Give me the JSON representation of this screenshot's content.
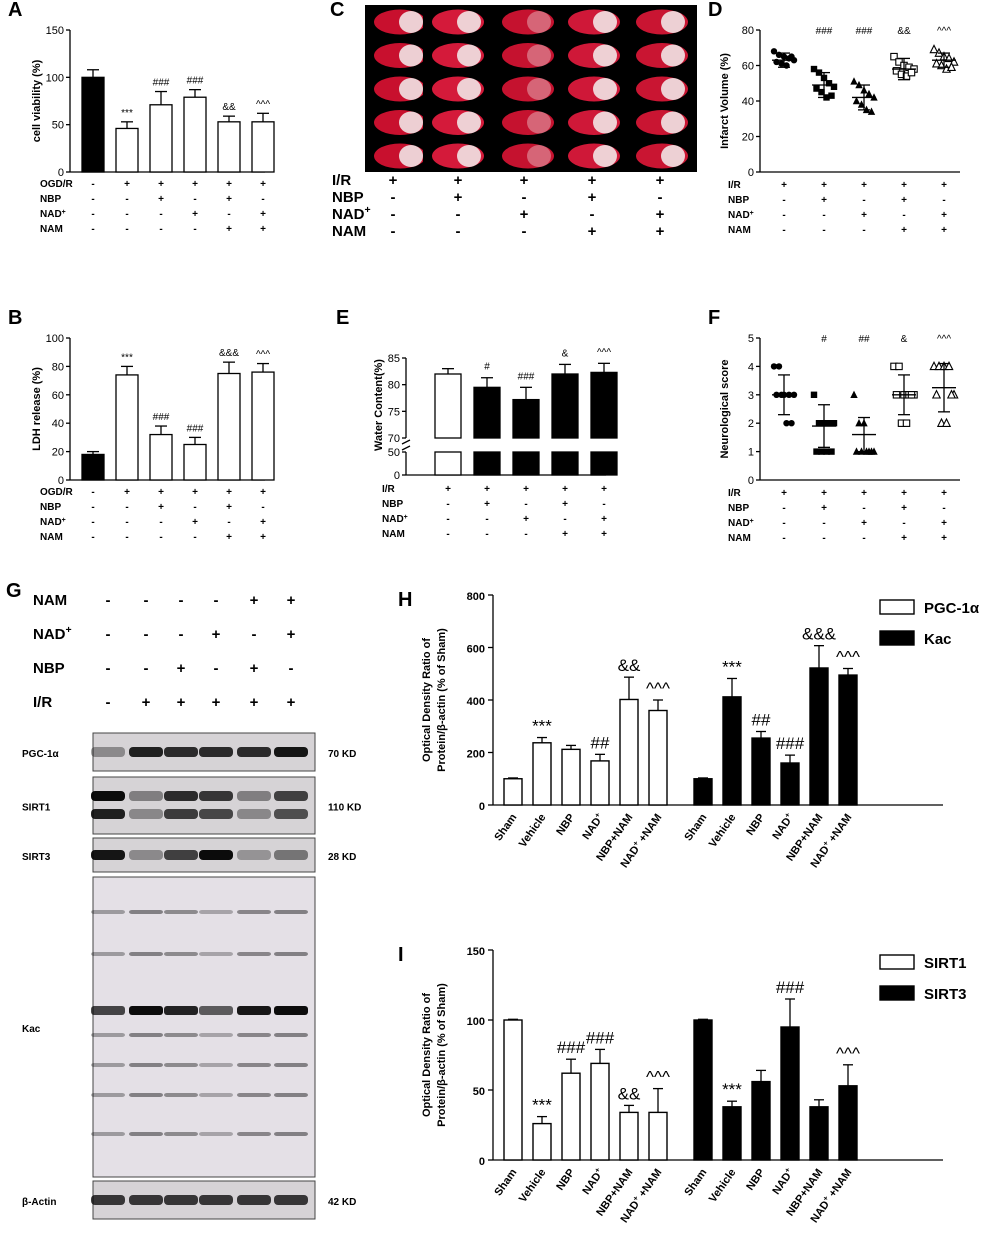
{
  "panels": {
    "A": {
      "label": "A",
      "ylabel": "cell viability (%)",
      "ylim": [
        0,
        150
      ],
      "yticks": [
        0,
        50,
        100,
        150
      ],
      "values": [
        100,
        46,
        71,
        79,
        53,
        53
      ],
      "errors": [
        8,
        7,
        14,
        8,
        6,
        9
      ],
      "fills": [
        "#000",
        "#fff",
        "#fff",
        "#fff",
        "#fff",
        "#fff"
      ],
      "sig": [
        "",
        "***",
        "###",
        "###",
        "&&",
        "^^^"
      ],
      "rows": [
        {
          "label": "OGD/R",
          "marks": [
            "-",
            "+",
            "+",
            "+",
            "+",
            "+"
          ]
        },
        {
          "label": "NBP",
          "marks": [
            "-",
            "-",
            "+",
            "-",
            "+",
            "-"
          ]
        },
        {
          "label": "NAD+",
          "marks": [
            "-",
            "-",
            "-",
            "+",
            "-",
            "+"
          ]
        },
        {
          "label": "NAM",
          "marks": [
            "-",
            "-",
            "-",
            "-",
            "+",
            "+"
          ]
        }
      ]
    },
    "B": {
      "label": "B",
      "ylabel": "LDH release (%)",
      "ylim": [
        0,
        100
      ],
      "yticks": [
        0,
        20,
        40,
        60,
        80,
        100
      ],
      "values": [
        18,
        74,
        32,
        25,
        75,
        76
      ],
      "errors": [
        2,
        6,
        6,
        5,
        8,
        6
      ],
      "fills": [
        "#000",
        "#fff",
        "#fff",
        "#fff",
        "#fff",
        "#fff"
      ],
      "sig": [
        "",
        "***",
        "###",
        "###",
        "&&&",
        "^^^"
      ],
      "rows": [
        {
          "label": "OGD/R",
          "marks": [
            "-",
            "+",
            "+",
            "+",
            "+",
            "+"
          ]
        },
        {
          "label": "NBP",
          "marks": [
            "-",
            "-",
            "+",
            "-",
            "+",
            "-"
          ]
        },
        {
          "label": "NAD+",
          "marks": [
            "-",
            "-",
            "-",
            "+",
            "-",
            "+"
          ]
        },
        {
          "label": "NAM",
          "marks": [
            "-",
            "-",
            "-",
            "-",
            "+",
            "+"
          ]
        }
      ]
    },
    "C": {
      "label": "C",
      "rows": [
        {
          "label": "I/R",
          "marks": [
            "+",
            "+",
            "+",
            "+",
            "+"
          ]
        },
        {
          "label": "NBP",
          "marks": [
            "-",
            "+",
            "-",
            "+",
            "-"
          ]
        },
        {
          "label": "NAD+",
          "marks": [
            "-",
            "-",
            "+",
            "-",
            "+"
          ]
        },
        {
          "label": "NAM",
          "marks": [
            "-",
            "-",
            "-",
            "+",
            "+"
          ]
        }
      ]
    },
    "D": {
      "label": "D",
      "ylabel": "Infarct Volume (%)",
      "ylim": [
        0,
        80
      ],
      "yticks": [
        0,
        20,
        40,
        60,
        80
      ],
      "means": [
        63,
        49,
        42,
        58,
        63
      ],
      "sds": [
        4,
        7,
        7,
        6,
        4
      ],
      "points": [
        [
          68,
          66,
          65,
          64,
          63,
          62,
          61,
          60,
          65
        ],
        [
          58,
          56,
          53,
          50,
          48,
          47,
          45,
          42,
          43
        ],
        [
          51,
          49,
          46,
          44,
          42,
          40,
          38,
          35,
          34
        ],
        [
          65,
          62,
          60,
          59,
          58,
          57,
          55,
          54,
          56
        ],
        [
          69,
          67,
          65,
          64,
          62,
          61,
          60,
          58,
          59
        ]
      ],
      "markers": [
        "circle",
        "square",
        "triangle",
        "square-open",
        "triangle-open"
      ],
      "sig": [
        "",
        "###",
        "###",
        "&&",
        "^^^"
      ],
      "rows": [
        {
          "label": "I/R",
          "marks": [
            "+",
            "+",
            "+",
            "+",
            "+"
          ]
        },
        {
          "label": "NBP",
          "marks": [
            "-",
            "+",
            "-",
            "+",
            "-"
          ]
        },
        {
          "label": "NAD+",
          "marks": [
            "-",
            "-",
            "+",
            "-",
            "+"
          ]
        },
        {
          "label": "NAM",
          "marks": [
            "-",
            "-",
            "-",
            "+",
            "+"
          ]
        }
      ]
    },
    "E": {
      "label": "E",
      "ylabel": "Water Content(%)",
      "yticks_upper": [
        70,
        75,
        80,
        85
      ],
      "yticks_lower": [
        0,
        50
      ],
      "values": [
        82,
        79.5,
        77.2,
        82,
        82.3
      ],
      "errors": [
        1,
        1.8,
        2.3,
        1.8,
        1.7
      ],
      "fills": [
        "#fff",
        "#000",
        "#000",
        "#000",
        "#000"
      ],
      "sig": [
        "",
        "#",
        "###",
        "&",
        "^^^"
      ],
      "rows": [
        {
          "label": "I/R",
          "marks": [
            "+",
            "+",
            "+",
            "+",
            "+"
          ]
        },
        {
          "label": "NBP",
          "marks": [
            "-",
            "+",
            "-",
            "+",
            "-"
          ]
        },
        {
          "label": "NAD+",
          "marks": [
            "-",
            "-",
            "+",
            "-",
            "+"
          ]
        },
        {
          "label": "NAM",
          "marks": [
            "-",
            "-",
            "-",
            "+",
            "+"
          ]
        }
      ]
    },
    "F": {
      "label": "F",
      "ylabel": "Neurological score",
      "ylim": [
        0,
        5
      ],
      "yticks": [
        0,
        1,
        2,
        3,
        4,
        5
      ],
      "means": [
        3.0,
        1.9,
        1.6,
        3.0,
        3.25
      ],
      "sds": [
        0.7,
        0.75,
        0.6,
        0.7,
        0.85
      ],
      "points": [
        [
          4,
          4,
          3,
          3,
          3,
          3,
          3,
          2,
          2
        ],
        [
          3,
          2,
          2,
          2,
          2,
          1,
          1,
          1,
          1
        ],
        [
          3,
          2,
          2,
          1,
          1,
          1,
          1,
          1,
          1
        ],
        [
          4,
          4,
          3,
          3,
          3,
          3,
          2,
          2,
          3
        ],
        [
          4,
          4,
          4,
          4,
          3,
          3,
          2,
          2,
          3
        ]
      ],
      "markers": [
        "circle",
        "square",
        "triangle",
        "square-open",
        "triangle-open"
      ],
      "sig": [
        "",
        "#",
        "##",
        "&",
        "^^^"
      ],
      "rows": [
        {
          "label": "I/R",
          "marks": [
            "+",
            "+",
            "+",
            "+",
            "+"
          ]
        },
        {
          "label": "NBP",
          "marks": [
            "-",
            "+",
            "-",
            "+",
            "-"
          ]
        },
        {
          "label": "NAD+",
          "marks": [
            "-",
            "-",
            "+",
            "-",
            "+"
          ]
        },
        {
          "label": "NAM",
          "marks": [
            "-",
            "-",
            "-",
            "+",
            "+"
          ]
        }
      ]
    },
    "G": {
      "label": "G",
      "rows": [
        {
          "label": "NAM",
          "marks": [
            "-",
            "-",
            "-",
            "-",
            "+",
            "+"
          ]
        },
        {
          "label": "NAD+",
          "marks": [
            "-",
            "-",
            "-",
            "+",
            "-",
            "+"
          ]
        },
        {
          "label": "NBP",
          "marks": [
            "-",
            "-",
            "+",
            "-",
            "+",
            "-"
          ]
        },
        {
          "label": "I/R",
          "marks": [
            "-",
            "+",
            "+",
            "+",
            "+",
            "+"
          ]
        }
      ],
      "blots": [
        {
          "name": "PGC-1α",
          "kd": "70 KD"
        },
        {
          "name": "SIRT1",
          "kd": "110 KD"
        },
        {
          "name": "SIRT3",
          "kd": "28 KD"
        },
        {
          "name": "Kac",
          "kd": ""
        },
        {
          "name": "β-Actin",
          "kd": "42 KD"
        }
      ]
    },
    "H": {
      "label": "H",
      "ylabel1": "Optical Density Ratio of",
      "ylabel2": "Protein/β-actin (% of Sham)",
      "ylim": [
        0,
        800
      ],
      "yticks": [
        0,
        200,
        400,
        600,
        800
      ],
      "categories": [
        "Sham",
        "Vehicle",
        "NBP",
        "NAD+",
        "NBP+NAM",
        "NAD+ +NAM"
      ],
      "series": [
        {
          "name": "PGC-1α",
          "color": "#fff",
          "values": [
            100,
            237,
            212,
            168,
            402,
            360
          ],
          "errors": [
            3,
            20,
            15,
            25,
            85,
            40
          ],
          "sig": [
            "",
            "***",
            "",
            "##",
            "&&",
            "^^^"
          ]
        },
        {
          "name": "Kac",
          "color": "#000",
          "values": [
            100,
            412,
            255,
            160,
            522,
            495
          ],
          "errors": [
            3,
            70,
            25,
            30,
            85,
            25
          ],
          "sig": [
            "",
            "***",
            "##",
            "###",
            "&&&",
            "^^^"
          ]
        }
      ]
    },
    "I": {
      "label": "I",
      "ylabel1": "Optical Density Ratio of",
      "ylabel2": "Protein/β-actin (% of Sham)",
      "ylim": [
        0,
        150
      ],
      "yticks": [
        0,
        50,
        100,
        150
      ],
      "categories": [
        "Sham",
        "Vehicle",
        "NBP",
        "NAD+",
        "NBP+NAM",
        "NAD+ +NAM"
      ],
      "series": [
        {
          "name": "SIRT1",
          "color": "#fff",
          "values": [
            100,
            26,
            62,
            69,
            34,
            34
          ],
          "errors": [
            0.5,
            5,
            10,
            10,
            5,
            17
          ],
          "sig": [
            "",
            "***",
            "###",
            "###",
            "&&",
            "^^^"
          ]
        },
        {
          "name": "SIRT3",
          "color": "#000",
          "values": [
            100,
            38,
            56,
            95,
            38,
            53
          ],
          "errors": [
            0.5,
            4,
            8,
            20,
            5,
            15
          ],
          "sig": [
            "",
            "***",
            "",
            "###",
            "",
            "^^^"
          ]
        }
      ]
    }
  },
  "chart_data": [
    {
      "type": "bar",
      "title": "A",
      "ylabel": "cell viability (%)",
      "ylim": [
        0,
        150
      ],
      "categories": [
        "1",
        "2",
        "3",
        "4",
        "5",
        "6"
      ],
      "values": [
        100,
        46,
        71,
        79,
        53,
        53
      ]
    },
    {
      "type": "bar",
      "title": "B",
      "ylabel": "LDH release (%)",
      "ylim": [
        0,
        100
      ],
      "categories": [
        "1",
        "2",
        "3",
        "4",
        "5",
        "6"
      ],
      "values": [
        18,
        74,
        32,
        25,
        75,
        76
      ]
    },
    {
      "type": "scatter",
      "title": "D",
      "ylabel": "Infarct Volume (%)",
      "ylim": [
        0,
        80
      ],
      "categories": [
        "1",
        "2",
        "3",
        "4",
        "5"
      ],
      "values": [
        63,
        49,
        42,
        58,
        63
      ]
    },
    {
      "type": "bar",
      "title": "E",
      "ylabel": "Water Content(%)",
      "categories": [
        "1",
        "2",
        "3",
        "4",
        "5"
      ],
      "values": [
        82,
        79.5,
        77.2,
        82,
        82.3
      ]
    },
    {
      "type": "scatter",
      "title": "F",
      "ylabel": "Neurological score",
      "ylim": [
        0,
        5
      ],
      "categories": [
        "1",
        "2",
        "3",
        "4",
        "5"
      ],
      "values": [
        3.0,
        1.9,
        1.6,
        3.0,
        3.25
      ]
    },
    {
      "type": "bar",
      "title": "H",
      "ylim": [
        0,
        800
      ],
      "categories": [
        "Sham",
        "Vehicle",
        "NBP",
        "NAD+",
        "NBP+NAM",
        "NAD+ +NAM"
      ],
      "series": [
        {
          "name": "PGC-1α",
          "values": [
            100,
            237,
            212,
            168,
            402,
            360
          ]
        },
        {
          "name": "Kac",
          "values": [
            100,
            412,
            255,
            160,
            522,
            495
          ]
        }
      ]
    },
    {
      "type": "bar",
      "title": "I",
      "ylim": [
        0,
        150
      ],
      "categories": [
        "Sham",
        "Vehicle",
        "NBP",
        "NAD+",
        "NBP+NAM",
        "NAD+ +NAM"
      ],
      "series": [
        {
          "name": "SIRT1",
          "values": [
            100,
            26,
            62,
            69,
            34,
            34
          ]
        },
        {
          "name": "SIRT3",
          "values": [
            100,
            38,
            56,
            95,
            38,
            53
          ]
        }
      ]
    }
  ]
}
